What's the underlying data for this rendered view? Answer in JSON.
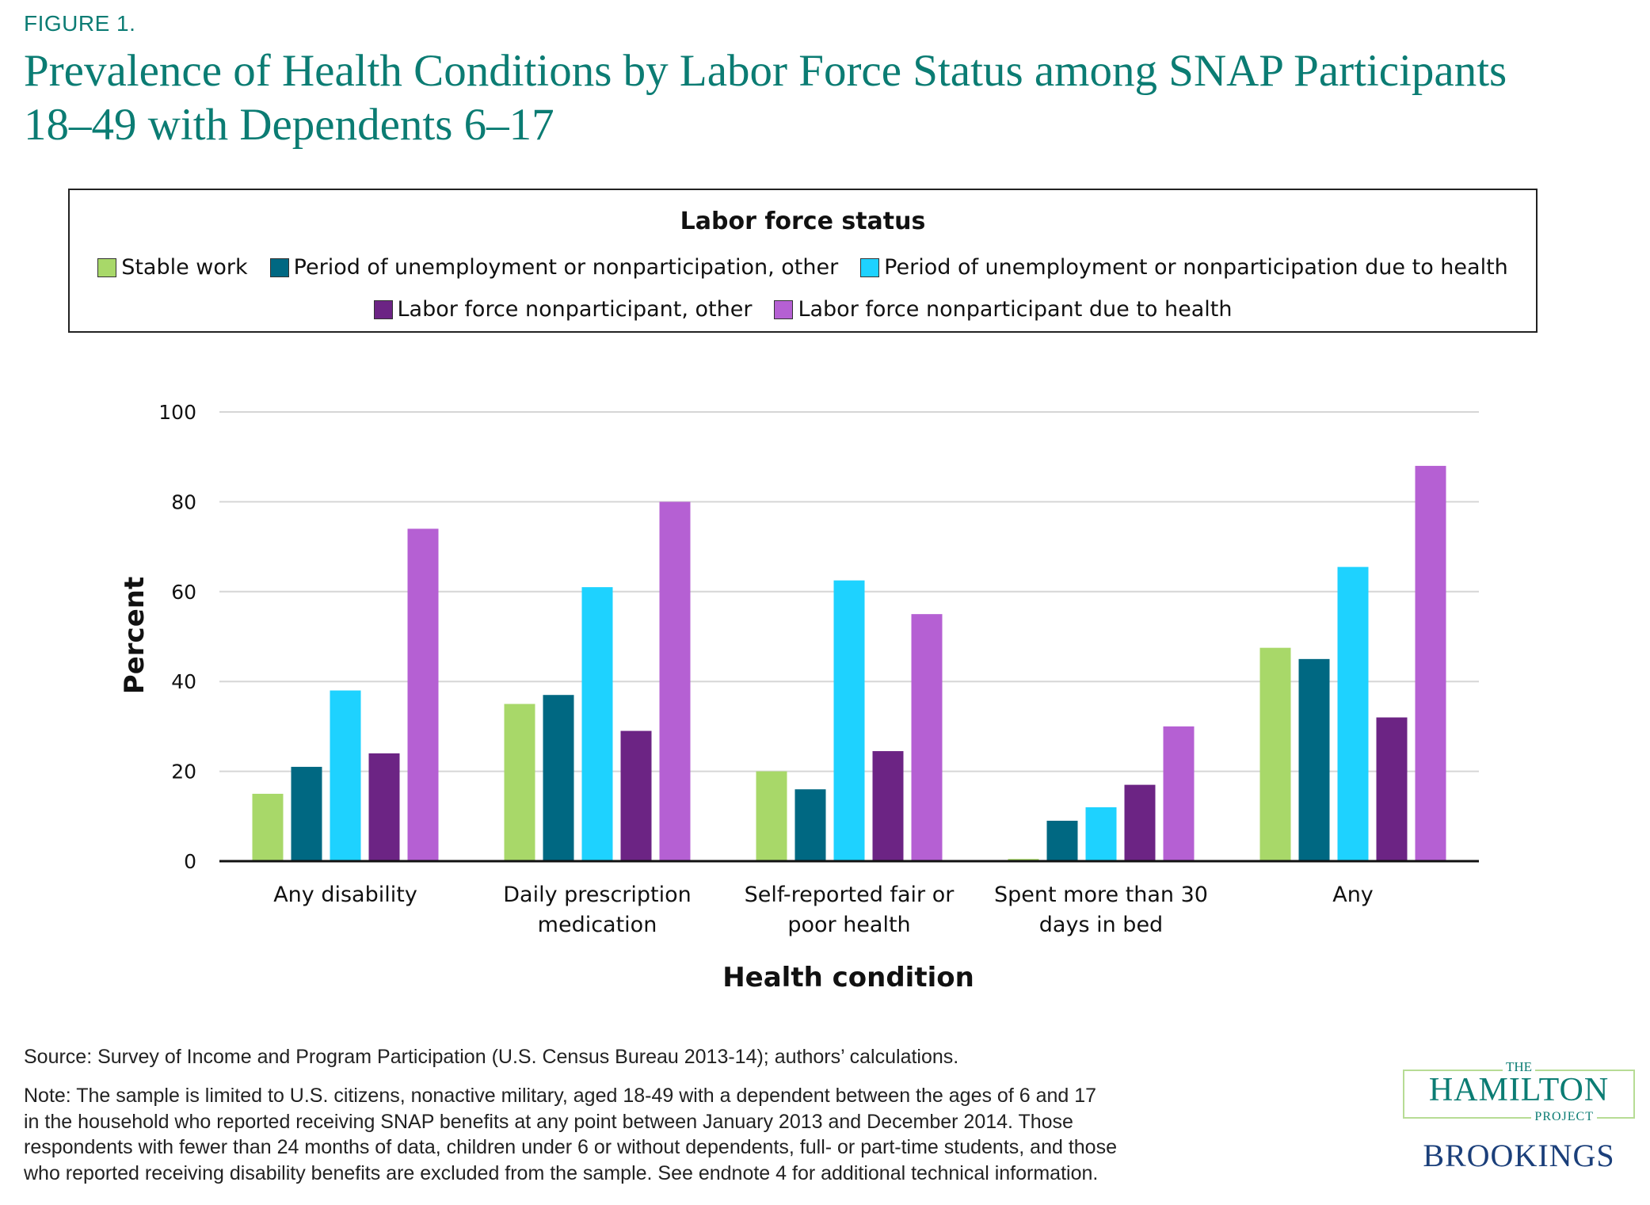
{
  "figure_label": "FIGURE 1.",
  "title_line1": "Prevalence of Health Conditions by Labor Force Status among SNAP Participants",
  "title_line2": "18–49 with Dependents 6–17",
  "legend": {
    "title": "Labor force status",
    "items": [
      {
        "label": "Stable work",
        "color": "#a8d869"
      },
      {
        "label": "Period of unemployment or nonparticipation, other",
        "color": "#006882"
      },
      {
        "label": "Period of unemployment or nonparticipation due to health",
        "color": "#1ed2ff"
      },
      {
        "label": "Labor force nonparticipant, other",
        "color": "#6c2484"
      },
      {
        "label": "Labor force nonparticipant due to health",
        "color": "#b560d3"
      }
    ]
  },
  "chart_data": {
    "type": "bar",
    "title": "Prevalence of Health Conditions by Labor Force Status among SNAP Participants 18–49 with Dependents 6–17",
    "xlabel": "Health condition",
    "ylabel": "Percent",
    "ylim": [
      0,
      100
    ],
    "yticks": [
      0,
      20,
      40,
      60,
      80,
      100
    ],
    "grid": true,
    "legend_position": "top",
    "categories": [
      [
        "Any disability"
      ],
      [
        "Daily prescription",
        "medication"
      ],
      [
        "Self-reported fair or",
        "poor health"
      ],
      [
        "Spent more than 30",
        "days in bed"
      ],
      [
        "Any"
      ]
    ],
    "series": [
      {
        "name": "Stable work",
        "color": "#a8d869",
        "values": [
          15,
          35,
          20,
          0.5,
          47.5
        ]
      },
      {
        "name": "Period of unemployment or nonparticipation, other",
        "color": "#006882",
        "values": [
          21,
          37,
          16,
          9,
          45
        ]
      },
      {
        "name": "Period of unemployment or nonparticipation due to health",
        "color": "#1ed2ff",
        "values": [
          38,
          61,
          62.5,
          12,
          65.5
        ]
      },
      {
        "name": "Labor force nonparticipant, other",
        "color": "#6c2484",
        "values": [
          24,
          29,
          24.5,
          17,
          32
        ]
      },
      {
        "name": "Labor force nonparticipant due to health",
        "color": "#b560d3",
        "values": [
          74,
          80,
          55,
          30,
          88
        ]
      }
    ]
  },
  "source": "Source: Survey of Income and Program Participation (U.S. Census Bureau 2013-14); authors’ calculations.",
  "note_lines": [
    "Note: The sample is limited to U.S. citizens, nonactive military, aged 18-49 with a dependent between the ages of 6 and 17",
    "in the household who reported receiving SNAP benefits at any point between January 2013 and December 2014. Those",
    "respondents with fewer than 24 months of data, children under 6 or without dependents, full- or part-time students, and those",
    "who reported receiving disability benefits are excluded from the sample. See endnote 4 for additional technical information."
  ],
  "logo": {
    "the": "THE",
    "hamilton": "HAMILTON",
    "project": "PROJECT",
    "brookings": "BROOKINGS"
  }
}
